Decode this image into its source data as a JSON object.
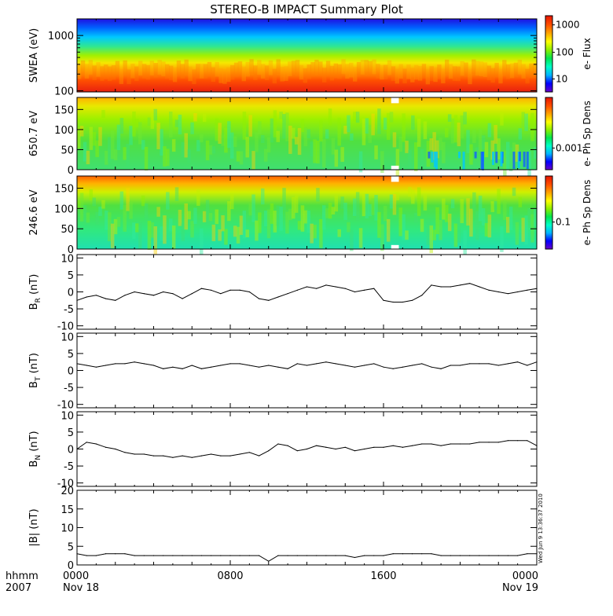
{
  "title": "STEREO-B IMPACT Summary Plot",
  "timestamp_vertical": "Wed Jun  9 13:36:37 2010",
  "x_axis": {
    "row1_label": "hhmm",
    "row2_label": "2007",
    "ticks": [
      {
        "hour": 0,
        "time": "0000",
        "date": "Nov 18"
      },
      {
        "hour": 8,
        "time": "0800",
        "date": ""
      },
      {
        "hour": 16,
        "time": "1600",
        "date": ""
      },
      {
        "hour": 24,
        "time": "0000",
        "date": "Nov 19"
      }
    ],
    "range_hours": [
      0,
      24
    ]
  },
  "colors": {
    "line": "#000000",
    "background": "#ffffff",
    "colorbar": [
      "#6a00c8",
      "#0000ff",
      "#00b4ff",
      "#00ffc8",
      "#00e650",
      "#8cf000",
      "#ffff00",
      "#ffa500",
      "#ff5000",
      "#e61400"
    ]
  },
  "chart_data": [
    {
      "type": "heatmap",
      "ylabel": "SWEA (eV)",
      "yscale": "log",
      "ylim": [
        95,
        2000
      ],
      "yticks": [
        {
          "v": 100,
          "label": "100"
        },
        {
          "v": 1000,
          "label": "1000"
        }
      ],
      "colorbar": {
        "label": "e- Flux",
        "scale": "log",
        "ticks": [
          "1000",
          "100",
          "10"
        ]
      },
      "description_bands": {
        "high_flux_below_eV": 300,
        "mid_eV": 550,
        "low_flux_above_eV": 1400
      }
    },
    {
      "type": "heatmap",
      "ylabel": "650.7 eV",
      "ylim": [
        0,
        180
      ],
      "yticks": [
        0,
        50,
        100,
        150
      ],
      "colorbar": {
        "label": "e- Ph Sp Dens",
        "ticks": [
          "0.001"
        ]
      },
      "gap_hours": [
        16.4,
        16.8
      ]
    },
    {
      "type": "heatmap",
      "ylabel": "246.6 eV",
      "ylim": [
        0,
        180
      ],
      "yticks": [
        0,
        50,
        100,
        150
      ],
      "colorbar": {
        "label": "e- Ph Sp Dens",
        "ticks": [
          "0.1"
        ]
      },
      "gap_hours": [
        16.4,
        16.8
      ]
    },
    {
      "type": "line",
      "ylabel_main": "B",
      "ylabel_sub": "R",
      "ylabel_unit": " (nT)",
      "ylim": [
        -11,
        11
      ],
      "yticks": [
        10,
        5,
        0,
        -5,
        -10
      ],
      "x": [
        0,
        0.5,
        1,
        1.5,
        2,
        2.5,
        3,
        3.5,
        4,
        4.5,
        5,
        5.5,
        6,
        6.5,
        7,
        7.5,
        8,
        8.5,
        9,
        9.5,
        10,
        10.5,
        11,
        11.5,
        12,
        12.5,
        13,
        13.5,
        14,
        14.5,
        15,
        15.5,
        16,
        16.5,
        17,
        17.5,
        18,
        18.5,
        19,
        19.5,
        20,
        20.5,
        21,
        21.5,
        22,
        22.5,
        23,
        23.5,
        24
      ],
      "values": [
        -2.5,
        -1.5,
        -1,
        -2,
        -2.5,
        -1,
        0,
        -0.5,
        -1,
        0,
        -0.5,
        -2,
        -0.5,
        1,
        0.5,
        -0.5,
        0.5,
        0.5,
        0,
        -2,
        -2.5,
        -1.5,
        -0.5,
        0.5,
        1.5,
        1,
        2,
        1.5,
        1,
        0,
        0.5,
        1,
        -2.5,
        -3,
        -3,
        -2.5,
        -1,
        2,
        1.5,
        1.5,
        2,
        2.5,
        1.5,
        0.5,
        0,
        -0.5,
        0,
        0.5,
        1
      ]
    },
    {
      "type": "line",
      "ylabel_main": "B",
      "ylabel_sub": "T",
      "ylabel_unit": " (nT)",
      "ylim": [
        -11,
        11
      ],
      "yticks": [
        10,
        5,
        0,
        -5,
        -10
      ],
      "x": [
        0,
        0.5,
        1,
        1.5,
        2,
        2.5,
        3,
        3.5,
        4,
        4.5,
        5,
        5.5,
        6,
        6.5,
        7,
        7.5,
        8,
        8.5,
        9,
        9.5,
        10,
        10.5,
        11,
        11.5,
        12,
        12.5,
        13,
        13.5,
        14,
        14.5,
        15,
        15.5,
        16,
        16.5,
        17,
        17.5,
        18,
        18.5,
        19,
        19.5,
        20,
        20.5,
        21,
        21.5,
        22,
        22.5,
        23,
        23.5,
        24
      ],
      "values": [
        2,
        1.5,
        1,
        1.5,
        2,
        2,
        2.5,
        2,
        1.5,
        0.5,
        1,
        0.5,
        1.5,
        0.5,
        1,
        1.5,
        2,
        2,
        1.5,
        1,
        1.5,
        1,
        0.5,
        2,
        1.5,
        2,
        2.5,
        2,
        1.5,
        1,
        1.5,
        2,
        1,
        0.5,
        1,
        1.5,
        2,
        1,
        0.5,
        1.5,
        1.5,
        2,
        2,
        2,
        1.5,
        2,
        2.5,
        1.5,
        2.5
      ]
    },
    {
      "type": "line",
      "ylabel_main": "B",
      "ylabel_sub": "N",
      "ylabel_unit": " (nT)",
      "ylim": [
        -11,
        11
      ],
      "yticks": [
        10,
        5,
        0,
        -5,
        -10
      ],
      "x": [
        0,
        0.5,
        1,
        1.5,
        2,
        2.5,
        3,
        3.5,
        4,
        4.5,
        5,
        5.5,
        6,
        6.5,
        7,
        7.5,
        8,
        8.5,
        9,
        9.5,
        10,
        10.5,
        11,
        11.5,
        12,
        12.5,
        13,
        13.5,
        14,
        14.5,
        15,
        15.5,
        16,
        16.5,
        17,
        17.5,
        18,
        18.5,
        19,
        19.5,
        20,
        20.5,
        21,
        21.5,
        22,
        22.5,
        23,
        23.5,
        24
      ],
      "values": [
        0,
        2,
        1.5,
        0.5,
        0,
        -1,
        -1.5,
        -1.5,
        -2,
        -2,
        -2.5,
        -2,
        -2.5,
        -2,
        -1.5,
        -2,
        -2,
        -1.5,
        -1,
        -2,
        -0.5,
        1.5,
        1,
        -0.5,
        0,
        1,
        0.5,
        0,
        0.5,
        -0.5,
        0,
        0.5,
        0.5,
        1,
        0.5,
        1,
        1.5,
        1.5,
        1,
        1.5,
        1.5,
        1.5,
        2,
        2,
        2,
        2.5,
        2.5,
        2.5,
        1
      ]
    },
    {
      "type": "line",
      "ylabel_main": "|B|",
      "ylabel_sub": "",
      "ylabel_unit": " (nT)",
      "ylim": [
        0,
        20
      ],
      "yticks": [
        20,
        15,
        10,
        5,
        0
      ],
      "x": [
        0,
        0.5,
        1,
        1.5,
        2,
        2.5,
        3,
        3.5,
        4,
        4.5,
        5,
        5.5,
        6,
        6.5,
        7,
        7.5,
        8,
        8.5,
        9,
        9.5,
        10,
        10.5,
        11,
        11.5,
        12,
        12.5,
        13,
        13.5,
        14,
        14.5,
        15,
        15.5,
        16,
        16.5,
        17,
        17.5,
        18,
        18.5,
        19,
        19.5,
        20,
        20.5,
        21,
        21.5,
        22,
        22.5,
        23,
        23.5,
        24
      ],
      "values": [
        3,
        2.5,
        2.5,
        3,
        3,
        3,
        2.5,
        2.5,
        2.5,
        2.5,
        2.5,
        2.5,
        2.5,
        2.5,
        2.5,
        2.5,
        2.5,
        2.5,
        2.5,
        2.5,
        1,
        2.5,
        2.5,
        2.5,
        2.5,
        2.5,
        2.5,
        2.5,
        2.5,
        2,
        2.5,
        2.5,
        2.5,
        3,
        3,
        3,
        3,
        3,
        2.5,
        2.5,
        2.5,
        2.5,
        2.5,
        2.5,
        2.5,
        2.5,
        2.5,
        3,
        3
      ]
    }
  ]
}
